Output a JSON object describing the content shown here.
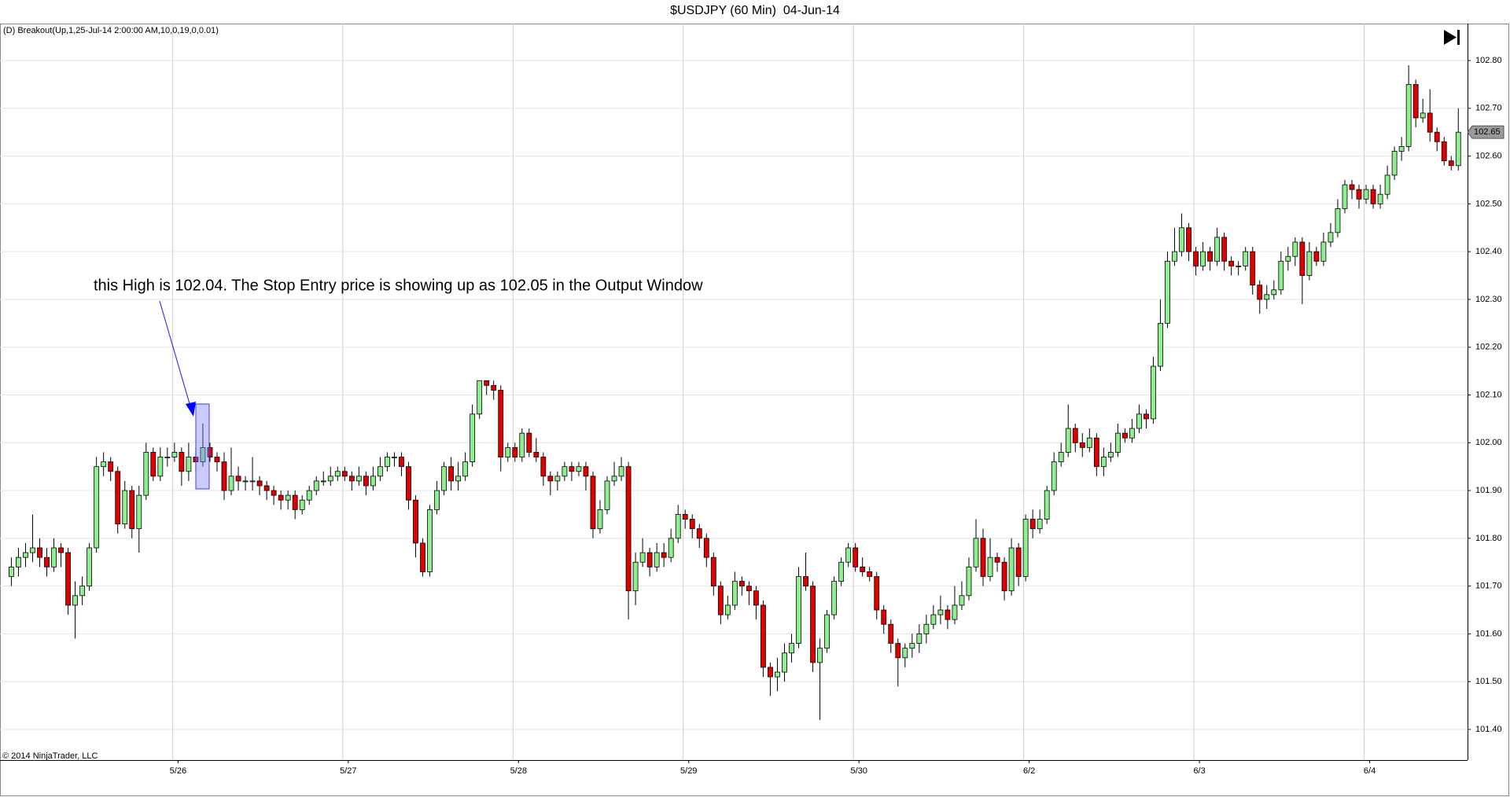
{
  "chart_data": {
    "type": "candlestick",
    "title": "$USDJPY (60 Min)  04-Jun-14",
    "indicator_label": "(D) Breakout(Up,1,25-Jul-14 2:00:00 AM,10,0,19,0,0.01)",
    "copyright": "© 2014 NinjaTrader, LLC",
    "annotation": "this High is 102.04. The Stop Entry price is showing up as 102.05 in the Output Window",
    "up_color": "#90ee90",
    "down_color": "#e00000",
    "grid": true,
    "last_price": 102.65,
    "xlim": [
      -1.6,
      205.3
    ],
    "xticks": [
      {
        "value": 23.5,
        "label": "5/26"
      },
      {
        "value": 47.5,
        "label": "5/27"
      },
      {
        "value": 71.5,
        "label": "5/28"
      },
      {
        "value": 95.5,
        "label": "5/29"
      },
      {
        "value": 119.5,
        "label": "5/30"
      },
      {
        "value": 143.5,
        "label": "6/2"
      },
      {
        "value": 167.5,
        "label": "6/3"
      },
      {
        "value": 191.5,
        "label": "6/4"
      }
    ],
    "ylim": [
      101.4,
      102.8
    ],
    "yticks": [
      {
        "value": 101.4,
        "label": "101.40"
      },
      {
        "value": 101.5,
        "label": "101.50"
      },
      {
        "value": 101.6,
        "label": "101.60"
      },
      {
        "value": 101.7,
        "label": "101.70"
      },
      {
        "value": 101.8,
        "label": "101.80"
      },
      {
        "value": 101.9,
        "label": "101.90"
      },
      {
        "value": 102.0,
        "label": "102.00"
      },
      {
        "value": 102.1,
        "label": "102.10"
      },
      {
        "value": 102.2,
        "label": "102.20"
      },
      {
        "value": 102.3,
        "label": "102.30"
      },
      {
        "value": 102.4,
        "label": "102.40"
      },
      {
        "value": 102.5,
        "label": "102.50"
      },
      {
        "value": 102.6,
        "label": "102.60"
      },
      {
        "value": 102.7,
        "label": "102.70"
      },
      {
        "value": 102.8,
        "label": "102.80"
      }
    ],
    "candles": [
      [
        101.72,
        101.76,
        101.7,
        101.74
      ],
      [
        101.74,
        101.78,
        101.72,
        101.76
      ],
      [
        101.76,
        101.79,
        101.74,
        101.77
      ],
      [
        101.77,
        101.85,
        101.75,
        101.78
      ],
      [
        101.78,
        101.8,
        101.74,
        101.76
      ],
      [
        101.76,
        101.78,
        101.72,
        101.74
      ],
      [
        101.74,
        101.8,
        101.73,
        101.78
      ],
      [
        101.78,
        101.79,
        101.74,
        101.77
      ],
      [
        101.77,
        101.78,
        101.64,
        101.66
      ],
      [
        101.66,
        101.71,
        101.59,
        101.68
      ],
      [
        101.68,
        101.72,
        101.66,
        101.7
      ],
      [
        101.7,
        101.79,
        101.69,
        101.78
      ],
      [
        101.78,
        101.97,
        101.77,
        101.95
      ],
      [
        101.95,
        101.98,
        101.93,
        101.96
      ],
      [
        101.96,
        101.97,
        101.92,
        101.94
      ],
      [
        101.94,
        101.95,
        101.81,
        101.83
      ],
      [
        101.83,
        101.92,
        101.82,
        101.9
      ],
      [
        101.9,
        101.91,
        101.8,
        101.82
      ],
      [
        101.82,
        101.91,
        101.77,
        101.89
      ],
      [
        101.89,
        102.0,
        101.88,
        101.98
      ],
      [
        101.98,
        101.99,
        101.92,
        101.93
      ],
      [
        101.93,
        101.99,
        101.92,
        101.97
      ],
      [
        101.97,
        101.99,
        101.95,
        101.97
      ],
      [
        101.97,
        102.0,
        101.96,
        101.98
      ],
      [
        101.98,
        101.99,
        101.91,
        101.94
      ],
      [
        101.94,
        102.0,
        101.92,
        101.97
      ],
      [
        101.97,
        101.99,
        101.94,
        101.96
      ],
      [
        101.96,
        102.04,
        101.95,
        101.99
      ],
      [
        101.99,
        102.0,
        101.96,
        101.97
      ],
      [
        101.97,
        101.98,
        101.94,
        101.96
      ],
      [
        101.96,
        101.98,
        101.88,
        101.9
      ],
      [
        101.9,
        101.99,
        101.89,
        101.93
      ],
      [
        101.93,
        101.95,
        101.9,
        101.92
      ],
      [
        101.92,
        101.93,
        101.9,
        101.92
      ],
      [
        101.92,
        101.97,
        101.9,
        101.92
      ],
      [
        101.92,
        101.93,
        101.89,
        101.91
      ],
      [
        101.91,
        101.92,
        101.88,
        101.9
      ],
      [
        101.9,
        101.91,
        101.87,
        101.89
      ],
      [
        101.89,
        101.9,
        101.86,
        101.88
      ],
      [
        101.88,
        101.9,
        101.86,
        101.89
      ],
      [
        101.89,
        101.9,
        101.84,
        101.86
      ],
      [
        101.86,
        101.89,
        101.85,
        101.88
      ],
      [
        101.88,
        101.91,
        101.87,
        101.9
      ],
      [
        101.9,
        101.93,
        101.89,
        101.92
      ],
      [
        101.92,
        101.94,
        101.91,
        101.92
      ],
      [
        101.92,
        101.95,
        101.91,
        101.93
      ],
      [
        101.93,
        101.95,
        101.92,
        101.94
      ],
      [
        101.94,
        101.95,
        101.92,
        101.93
      ],
      [
        101.93,
        101.94,
        101.9,
        101.92
      ],
      [
        101.92,
        101.95,
        101.91,
        101.93
      ],
      [
        101.93,
        101.94,
        101.89,
        101.91
      ],
      [
        101.91,
        101.95,
        101.9,
        101.93
      ],
      [
        101.93,
        101.97,
        101.92,
        101.95
      ],
      [
        101.95,
        101.98,
        101.94,
        101.97
      ],
      [
        101.97,
        101.98,
        101.95,
        101.97
      ],
      [
        101.97,
        101.98,
        101.93,
        101.95
      ],
      [
        101.95,
        101.96,
        101.86,
        101.88
      ],
      [
        101.88,
        101.89,
        101.76,
        101.79
      ],
      [
        101.79,
        101.8,
        101.72,
        101.73
      ],
      [
        101.73,
        101.87,
        101.72,
        101.86
      ],
      [
        101.86,
        101.92,
        101.85,
        101.9
      ],
      [
        101.9,
        101.96,
        101.89,
        101.95
      ],
      [
        101.95,
        101.97,
        101.9,
        101.92
      ],
      [
        101.92,
        101.96,
        101.9,
        101.93
      ],
      [
        101.93,
        101.98,
        101.92,
        101.96
      ],
      [
        101.96,
        102.08,
        101.95,
        102.06
      ],
      [
        102.06,
        102.13,
        102.05,
        102.13
      ],
      [
        102.13,
        102.13,
        102.1,
        102.12
      ],
      [
        102.12,
        102.13,
        102.09,
        102.11
      ],
      [
        102.11,
        102.12,
        101.94,
        101.97
      ],
      [
        101.97,
        102.0,
        101.96,
        101.99
      ],
      [
        101.99,
        102.0,
        101.96,
        101.97
      ],
      [
        101.97,
        102.03,
        101.96,
        102.02
      ],
      [
        102.02,
        102.03,
        101.97,
        101.98
      ],
      [
        101.98,
        102.01,
        101.96,
        101.97
      ],
      [
        101.97,
        101.98,
        101.91,
        101.93
      ],
      [
        101.93,
        101.94,
        101.89,
        101.92
      ],
      [
        101.92,
        101.94,
        101.9,
        101.93
      ],
      [
        101.93,
        101.96,
        101.92,
        101.95
      ],
      [
        101.95,
        101.96,
        101.92,
        101.94
      ],
      [
        101.94,
        101.96,
        101.93,
        101.95
      ],
      [
        101.95,
        101.96,
        101.9,
        101.93
      ],
      [
        101.93,
        101.94,
        101.8,
        101.82
      ],
      [
        101.82,
        101.88,
        101.81,
        101.86
      ],
      [
        101.86,
        101.93,
        101.85,
        101.92
      ],
      [
        101.92,
        101.96,
        101.91,
        101.93
      ],
      [
        101.93,
        101.97,
        101.92,
        101.95
      ],
      [
        101.95,
        101.96,
        101.63,
        101.69
      ],
      [
        101.69,
        101.77,
        101.66,
        101.75
      ],
      [
        101.75,
        101.8,
        101.74,
        101.77
      ],
      [
        101.77,
        101.78,
        101.72,
        101.74
      ],
      [
        101.74,
        101.79,
        101.73,
        101.77
      ],
      [
        101.77,
        101.79,
        101.74,
        101.76
      ],
      [
        101.76,
        101.82,
        101.75,
        101.8
      ],
      [
        101.8,
        101.87,
        101.79,
        101.85
      ],
      [
        101.85,
        101.86,
        101.82,
        101.84
      ],
      [
        101.84,
        101.85,
        101.8,
        101.82
      ],
      [
        101.82,
        101.83,
        101.78,
        101.8
      ],
      [
        101.8,
        101.81,
        101.74,
        101.76
      ],
      [
        101.76,
        101.77,
        101.68,
        101.7
      ],
      [
        101.7,
        101.71,
        101.62,
        101.64
      ],
      [
        101.64,
        101.68,
        101.63,
        101.66
      ],
      [
        101.66,
        101.73,
        101.65,
        101.71
      ],
      [
        101.71,
        101.72,
        101.68,
        101.7
      ],
      [
        101.7,
        101.71,
        101.66,
        101.69
      ],
      [
        101.69,
        101.7,
        101.63,
        101.66
      ],
      [
        101.66,
        101.67,
        101.51,
        101.53
      ],
      [
        101.53,
        101.54,
        101.47,
        101.51
      ],
      [
        101.51,
        101.55,
        101.48,
        101.52
      ],
      [
        101.52,
        101.58,
        101.5,
        101.56
      ],
      [
        101.56,
        101.6,
        101.54,
        101.58
      ],
      [
        101.58,
        101.74,
        101.57,
        101.72
      ],
      [
        101.72,
        101.77,
        101.69,
        101.7
      ],
      [
        101.7,
        101.71,
        101.52,
        101.54
      ],
      [
        101.54,
        101.59,
        101.42,
        101.57
      ],
      [
        101.57,
        101.65,
        101.56,
        101.64
      ],
      [
        101.64,
        101.72,
        101.63,
        101.71
      ],
      [
        101.71,
        101.76,
        101.7,
        101.75
      ],
      [
        101.75,
        101.79,
        101.74,
        101.78
      ],
      [
        101.78,
        101.79,
        101.73,
        101.74
      ],
      [
        101.74,
        101.76,
        101.72,
        101.73
      ],
      [
        101.73,
        101.74,
        101.71,
        101.72
      ],
      [
        101.72,
        101.73,
        101.63,
        101.65
      ],
      [
        101.65,
        101.66,
        101.6,
        101.62
      ],
      [
        101.62,
        101.63,
        101.56,
        101.58
      ],
      [
        101.58,
        101.59,
        101.49,
        101.55
      ],
      [
        101.55,
        101.58,
        101.53,
        101.57
      ],
      [
        101.57,
        101.6,
        101.55,
        101.58
      ],
      [
        101.58,
        101.62,
        101.56,
        101.6
      ],
      [
        101.6,
        101.64,
        101.58,
        101.62
      ],
      [
        101.62,
        101.66,
        101.61,
        101.64
      ],
      [
        101.64,
        101.68,
        101.62,
        101.65
      ],
      [
        101.65,
        101.66,
        101.61,
        101.63
      ],
      [
        101.63,
        101.7,
        101.62,
        101.66
      ],
      [
        101.66,
        101.71,
        101.65,
        101.68
      ],
      [
        101.68,
        101.76,
        101.67,
        101.74
      ],
      [
        101.74,
        101.84,
        101.73,
        101.8
      ],
      [
        101.8,
        101.82,
        101.7,
        101.72
      ],
      [
        101.72,
        101.8,
        101.71,
        101.76
      ],
      [
        101.76,
        101.77,
        101.73,
        101.75
      ],
      [
        101.75,
        101.76,
        101.67,
        101.69
      ],
      [
        101.69,
        101.8,
        101.68,
        101.78
      ],
      [
        101.78,
        101.79,
        101.7,
        101.72
      ],
      [
        101.72,
        101.85,
        101.71,
        101.84
      ],
      [
        101.84,
        101.86,
        101.8,
        101.82
      ],
      [
        101.82,
        101.86,
        101.81,
        101.84
      ],
      [
        101.84,
        101.91,
        101.83,
        101.9
      ],
      [
        101.9,
        101.98,
        101.89,
        101.96
      ],
      [
        101.96,
        102.0,
        101.95,
        101.98
      ],
      [
        101.98,
        102.08,
        101.97,
        102.03
      ],
      [
        102.03,
        102.04,
        101.98,
        102.0
      ],
      [
        102.0,
        102.02,
        101.97,
        101.99
      ],
      [
        101.99,
        102.03,
        101.98,
        102.01
      ],
      [
        102.01,
        102.02,
        101.93,
        101.95
      ],
      [
        101.95,
        101.99,
        101.93,
        101.97
      ],
      [
        101.97,
        102.0,
        101.96,
        101.98
      ],
      [
        101.98,
        102.04,
        101.97,
        102.02
      ],
      [
        102.02,
        102.03,
        102.0,
        102.01
      ],
      [
        102.01,
        102.05,
        102.0,
        102.03
      ],
      [
        102.03,
        102.08,
        102.02,
        102.06
      ],
      [
        102.06,
        102.07,
        102.03,
        102.05
      ],
      [
        102.05,
        102.18,
        102.04,
        102.16
      ],
      [
        102.16,
        102.3,
        102.15,
        102.25
      ],
      [
        102.25,
        102.4,
        102.24,
        102.38
      ],
      [
        102.38,
        102.45,
        102.37,
        102.4
      ],
      [
        102.4,
        102.48,
        102.39,
        102.45
      ],
      [
        102.45,
        102.46,
        102.38,
        102.4
      ],
      [
        102.4,
        102.41,
        102.35,
        102.37
      ],
      [
        102.37,
        102.42,
        102.36,
        102.4
      ],
      [
        102.4,
        102.41,
        102.36,
        102.38
      ],
      [
        102.38,
        102.45,
        102.37,
        102.43
      ],
      [
        102.43,
        102.44,
        102.36,
        102.38
      ],
      [
        102.38,
        102.39,
        102.35,
        102.37
      ],
      [
        102.37,
        102.38,
        102.35,
        102.37
      ],
      [
        102.37,
        102.41,
        102.36,
        102.4
      ],
      [
        102.4,
        102.41,
        102.31,
        102.33
      ],
      [
        102.33,
        102.34,
        102.27,
        102.3
      ],
      [
        102.3,
        102.33,
        102.28,
        102.31
      ],
      [
        102.31,
        102.34,
        102.3,
        102.32
      ],
      [
        102.32,
        102.4,
        102.31,
        102.38
      ],
      [
        102.38,
        102.41,
        102.36,
        102.39
      ],
      [
        102.39,
        102.43,
        102.37,
        102.42
      ],
      [
        102.42,
        102.43,
        102.29,
        102.35
      ],
      [
        102.35,
        102.42,
        102.34,
        102.4
      ],
      [
        102.4,
        102.41,
        102.37,
        102.38
      ],
      [
        102.38,
        102.44,
        102.37,
        102.42
      ],
      [
        102.42,
        102.46,
        102.41,
        102.44
      ],
      [
        102.44,
        102.51,
        102.43,
        102.49
      ],
      [
        102.49,
        102.55,
        102.48,
        102.54
      ],
      [
        102.54,
        102.55,
        102.51,
        102.53
      ],
      [
        102.53,
        102.54,
        102.49,
        102.51
      ],
      [
        102.51,
        102.54,
        102.5,
        102.53
      ],
      [
        102.53,
        102.54,
        102.49,
        102.5
      ],
      [
        102.5,
        102.54,
        102.49,
        102.52
      ],
      [
        102.52,
        102.58,
        102.51,
        102.56
      ],
      [
        102.56,
        102.62,
        102.55,
        102.61
      ],
      [
        102.61,
        102.64,
        102.59,
        102.62
      ],
      [
        102.62,
        102.79,
        102.61,
        102.75
      ],
      [
        102.75,
        102.76,
        102.66,
        102.68
      ],
      [
        102.68,
        102.72,
        102.67,
        102.69
      ],
      [
        102.69,
        102.74,
        102.63,
        102.65
      ],
      [
        102.65,
        102.66,
        102.61,
        102.63
      ],
      [
        102.63,
        102.64,
        102.58,
        102.59
      ],
      [
        102.59,
        102.6,
        102.57,
        102.58
      ],
      [
        102.58,
        102.7,
        102.57,
        102.65
      ]
    ]
  }
}
